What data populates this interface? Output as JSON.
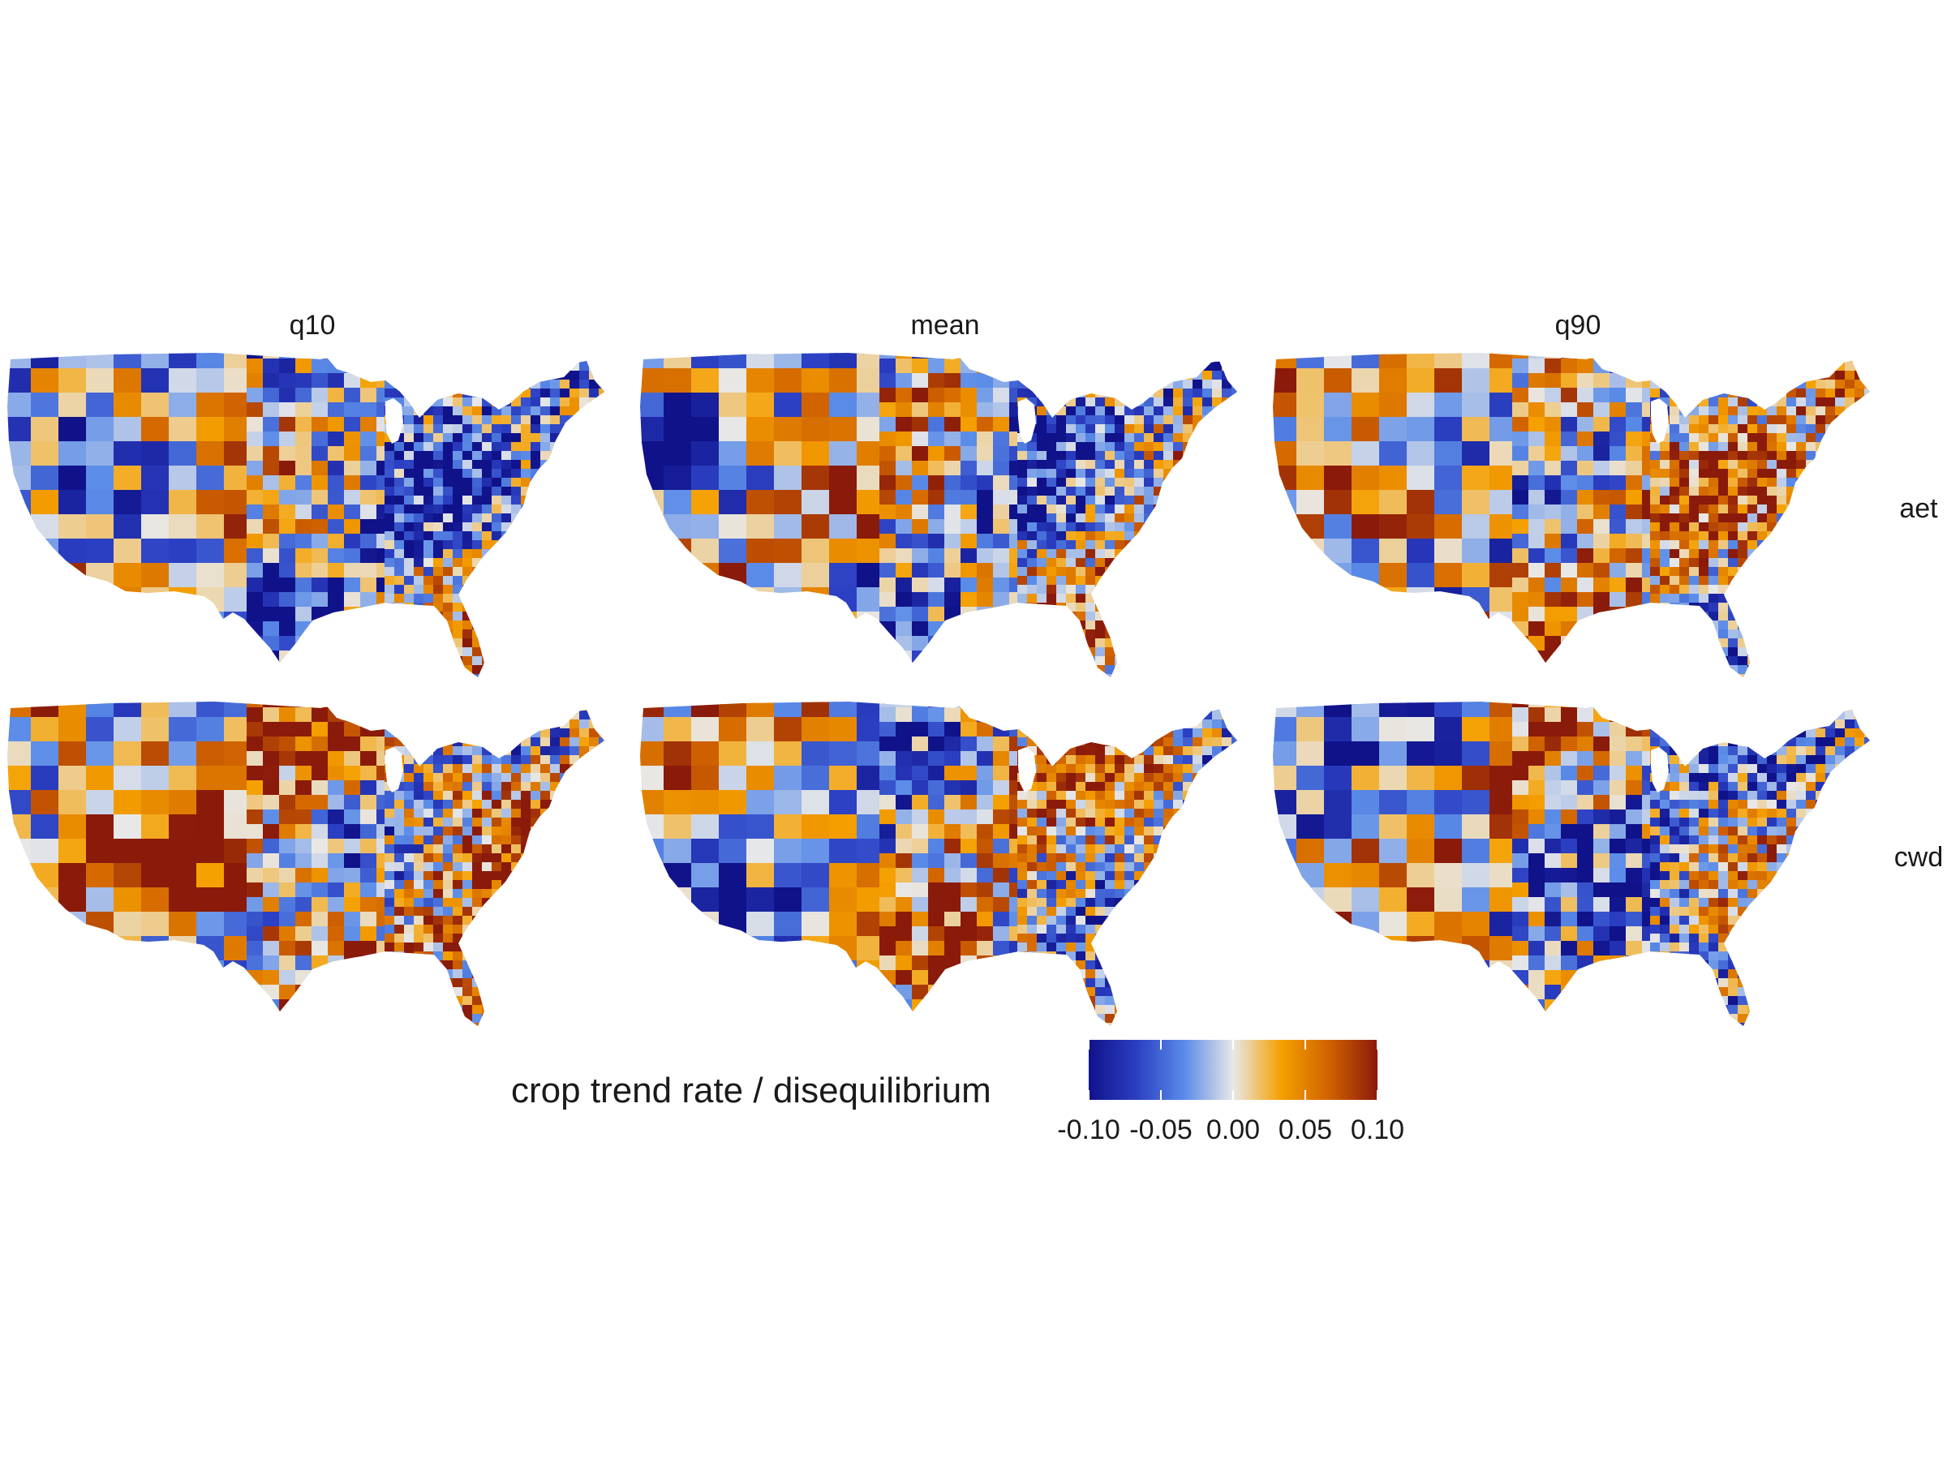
{
  "columns": [
    "q10",
    "mean",
    "q90"
  ],
  "rows": [
    "aet",
    "cwd"
  ],
  "legend": {
    "title": "crop trend rate / disequilibrium",
    "min": -0.1,
    "max": 0.1,
    "ticks": [
      {
        "value": -0.1,
        "label": "-0.10"
      },
      {
        "value": -0.05,
        "label": "-0.05"
      },
      {
        "value": 0,
        "label": "0.00"
      },
      {
        "value": 0.05,
        "label": "0.05"
      },
      {
        "value": 0.1,
        "label": "0.10"
      }
    ],
    "colors": [
      "#10128a",
      "#2b3fc2",
      "#5b8ce8",
      "#e8e8e8",
      "#f5a000",
      "#d06200",
      "#8a1a0a"
    ]
  },
  "map_data": {
    "type": "choropleth-faceted",
    "region": "contiguous United States (county level)",
    "panels": [
      {
        "row": "aet",
        "col": "q10",
        "seed": 11,
        "bias": -0.015
      },
      {
        "row": "aet",
        "col": "mean",
        "seed": 23,
        "bias": 0.0
      },
      {
        "row": "aet",
        "col": "q90",
        "seed": 37,
        "bias": 0.01
      },
      {
        "row": "cwd",
        "col": "q10",
        "seed": 41,
        "bias": 0.03
      },
      {
        "row": "cwd",
        "col": "mean",
        "seed": 53,
        "bias": 0.005
      },
      {
        "row": "cwd",
        "col": "q90",
        "seed": 67,
        "bias": -0.005
      }
    ]
  }
}
